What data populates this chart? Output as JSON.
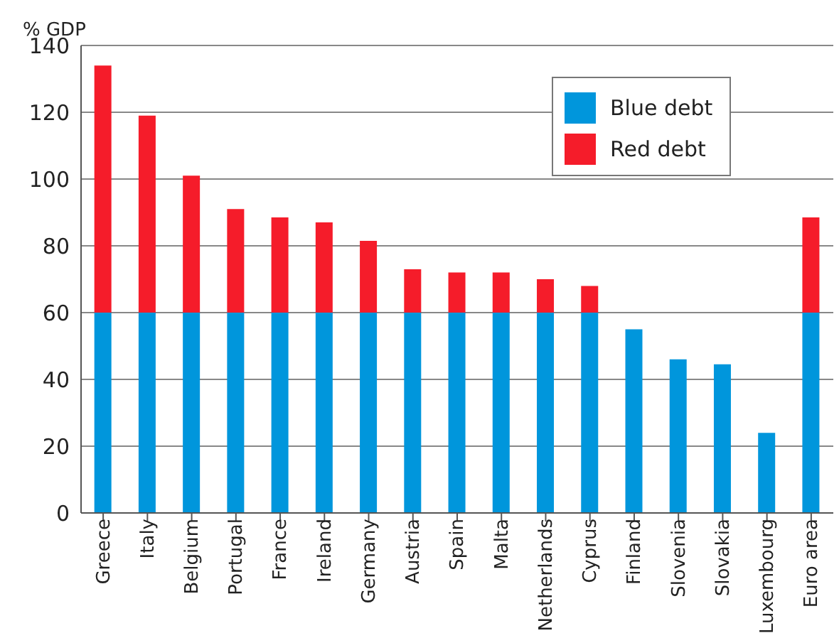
{
  "chart_data": {
    "type": "bar",
    "ylabel": "% GDP",
    "stacked": true,
    "categories": [
      "Greece",
      "Italy",
      "Belgium",
      "Portugal",
      "France",
      "Ireland",
      "Germany",
      "Austria",
      "Spain",
      "Malta",
      "Netherlands",
      "Cyprus",
      "Finland",
      "Slovenia",
      "Slovakia",
      "Luxembourg",
      "Euro area"
    ],
    "series": [
      {
        "name": "Blue debt",
        "color": "#0096dc",
        "values": [
          60,
          60,
          60,
          60,
          60,
          60,
          60,
          60,
          60,
          60,
          60,
          60,
          55,
          46,
          44.5,
          24,
          60
        ]
      },
      {
        "name": "Red debt",
        "color": "#f51c2a",
        "values": [
          74,
          59,
          41,
          31,
          28.5,
          27,
          21.5,
          13,
          12,
          12,
          10,
          8,
          null,
          null,
          null,
          null,
          28.5
        ]
      }
    ],
    "ylim": [
      0,
      140
    ],
    "yticks": [
      0,
      20,
      40,
      60,
      80,
      100,
      120,
      140
    ],
    "grid": "y",
    "legend": "top right"
  }
}
